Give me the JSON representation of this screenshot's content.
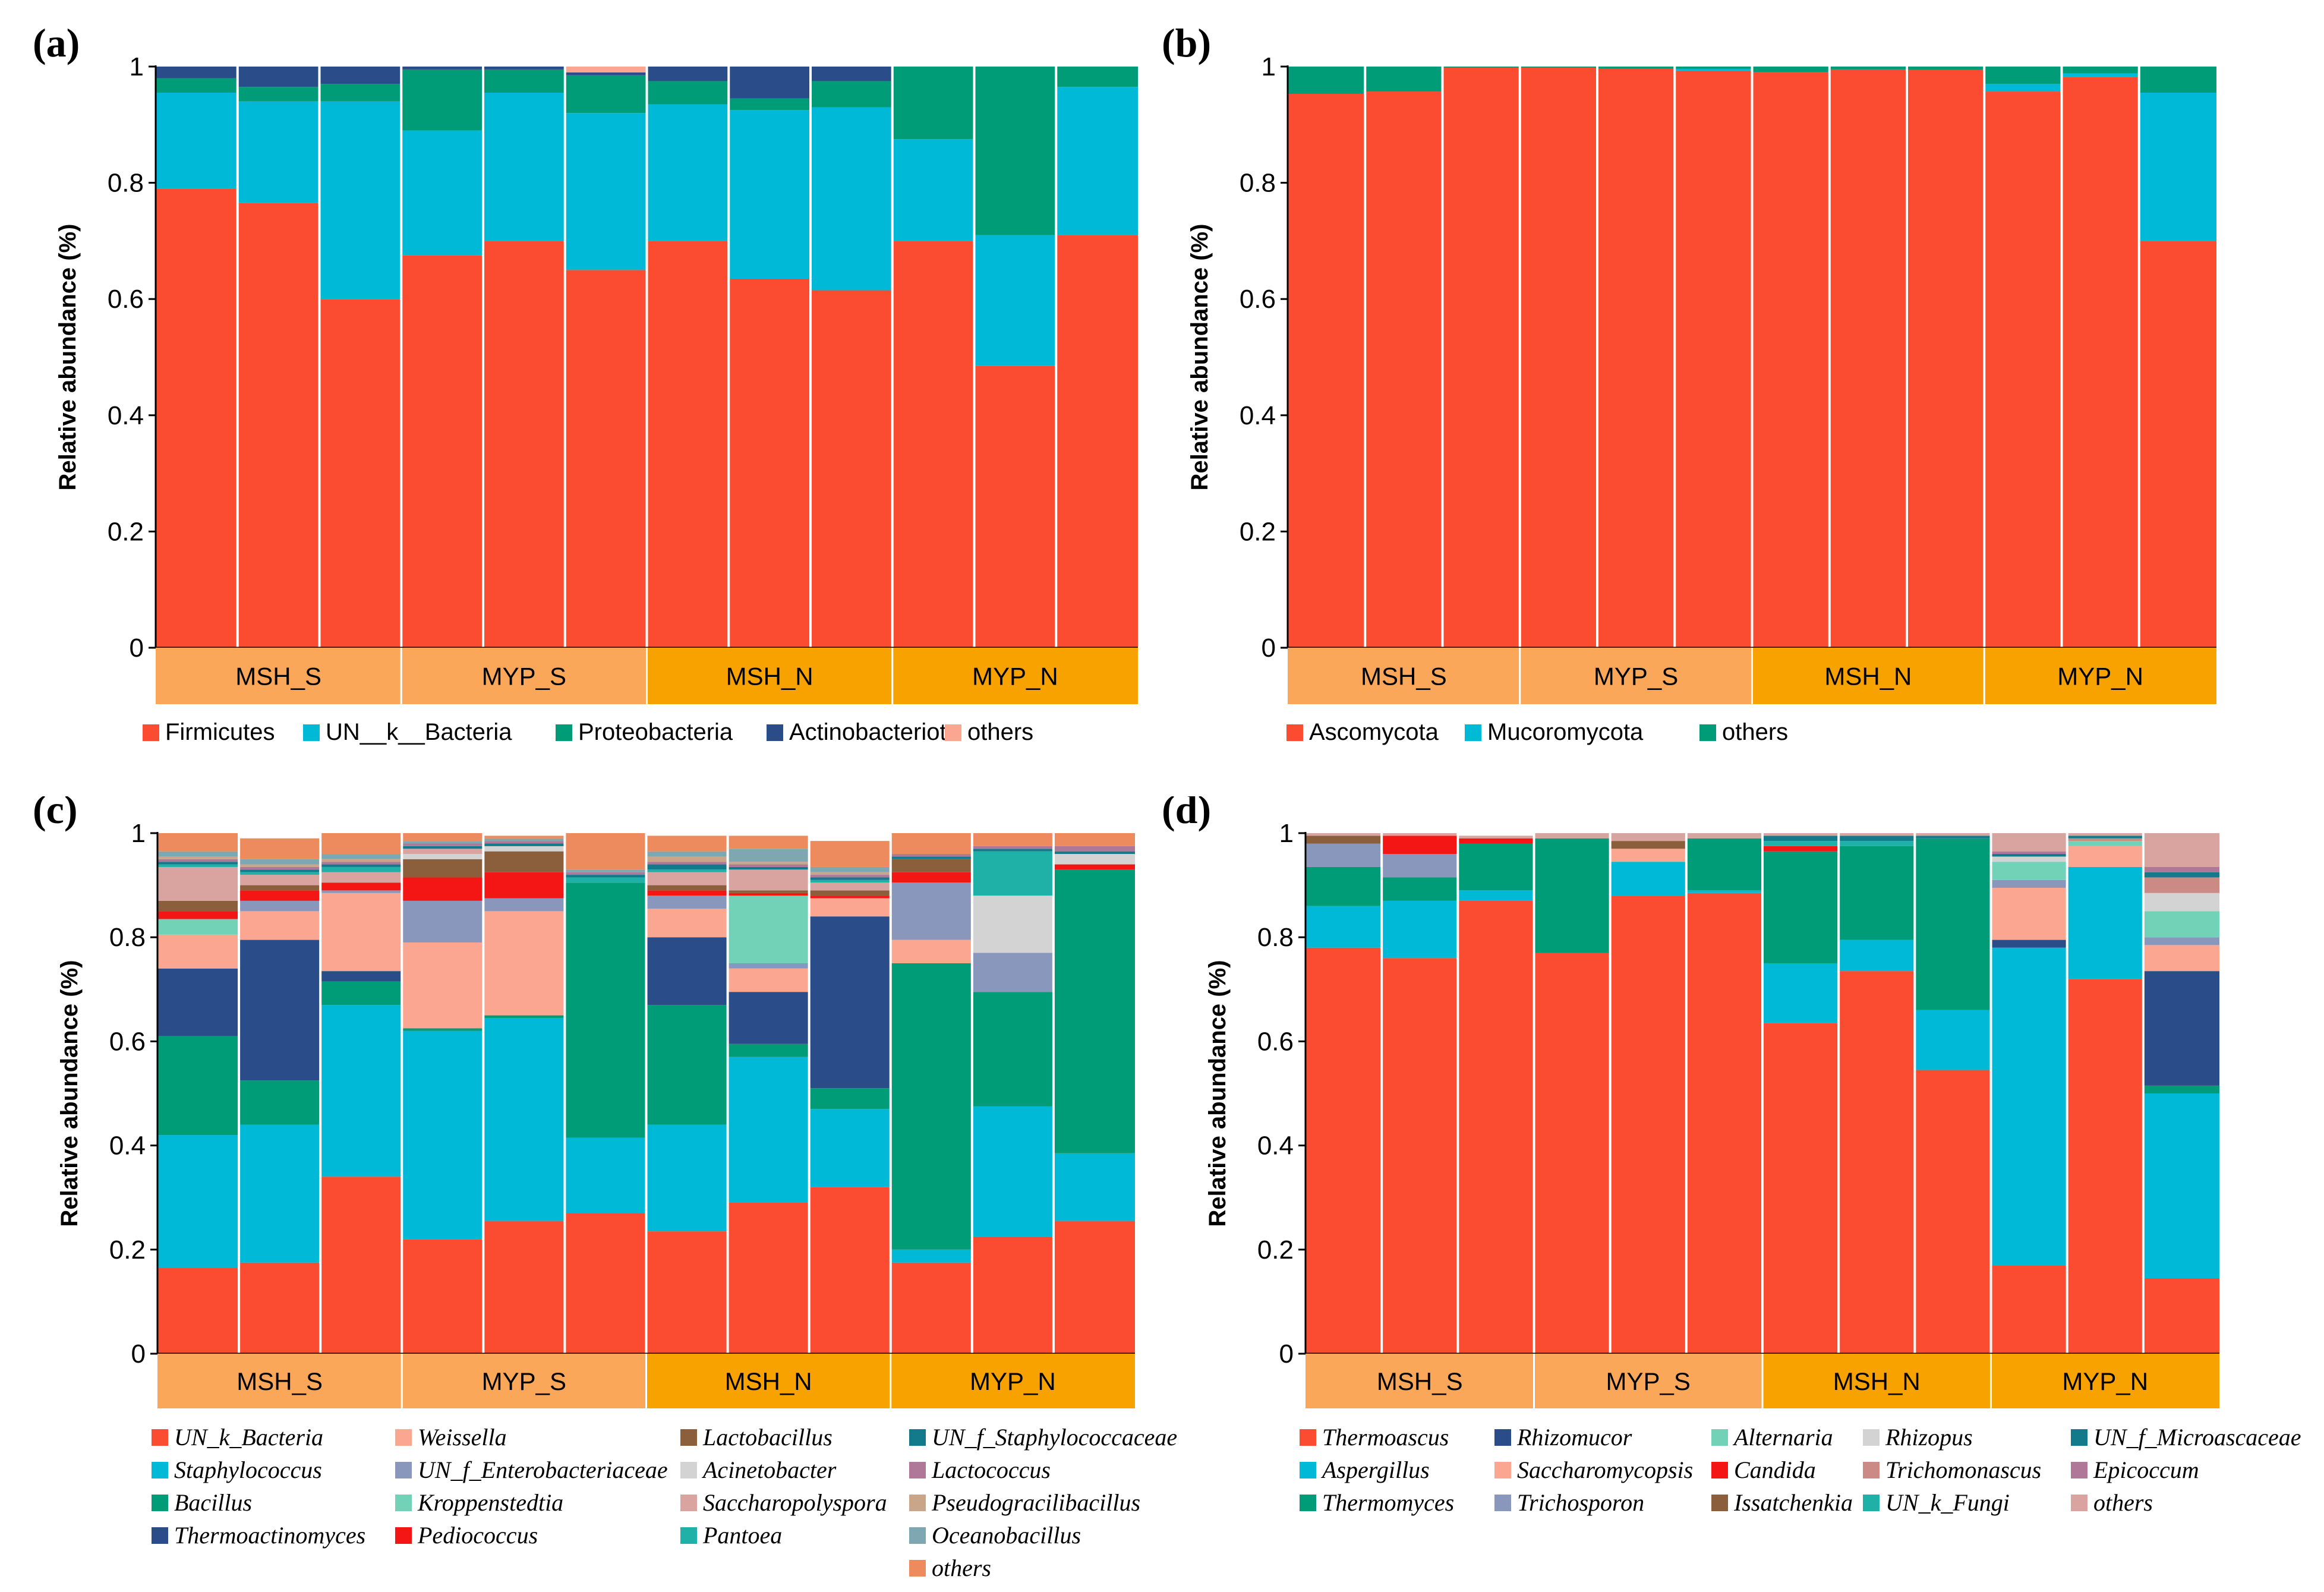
{
  "groups": [
    "MSH_S",
    "MYP_S",
    "MSH_N",
    "MYP_N"
  ],
  "group_colors": [
    "#FBA75A",
    "#FBA75A",
    "#F8A200",
    "#F8A200"
  ],
  "chart_data": [
    {
      "panel": "(a)",
      "type": "stacked-bar",
      "ylabel": "Relative abundance (%)",
      "ylim": [
        0,
        1
      ],
      "yticks": [
        "0",
        "0.2",
        "0.4",
        "0.6",
        "0.8",
        "1"
      ],
      "groups": [
        "MSH_S",
        "MYP_S",
        "MSH_N",
        "MYP_N"
      ],
      "bars_per_group": 3,
      "legend_italic": false,
      "series": [
        {
          "name": "Firmicutes",
          "color": "#FB4B31",
          "values": [
            0.79,
            0.765,
            0.6,
            0.675,
            0.7,
            0.65,
            0.7,
            0.635,
            0.615,
            0.7,
            0.485,
            0.71
          ]
        },
        {
          "name": "UN__k__Bacteria",
          "color": "#00B9D6",
          "values": [
            0.165,
            0.175,
            0.34,
            0.215,
            0.255,
            0.27,
            0.235,
            0.29,
            0.315,
            0.175,
            0.225,
            0.255
          ]
        },
        {
          "name": "Proteobacteria",
          "color": "#009B77",
          "values": [
            0.025,
            0.025,
            0.03,
            0.105,
            0.04,
            0.065,
            0.04,
            0.02,
            0.045,
            0.125,
            0.29,
            0.035
          ]
        },
        {
          "name": "Actinobacteriota",
          "color": "#2A4C89",
          "values": [
            0.02,
            0.035,
            0.03,
            0.005,
            0.005,
            0.005,
            0.025,
            0.055,
            0.025,
            0.0,
            0.0,
            0.0
          ]
        },
        {
          "name": "others",
          "color": "#FBA690",
          "values": [
            0.0,
            0.0,
            0.0,
            0.0,
            0.0,
            0.01,
            0.0,
            0.0,
            0.0,
            0.0,
            0.0,
            0.0
          ]
        }
      ]
    },
    {
      "panel": "(b)",
      "type": "stacked-bar",
      "ylabel": "Relative abundance (%)",
      "ylim": [
        0,
        1
      ],
      "yticks": [
        "0",
        "0.2",
        "0.4",
        "0.6",
        "0.8",
        "1"
      ],
      "groups": [
        "MSH_S",
        "MYP_S",
        "MSH_N",
        "MYP_N"
      ],
      "bars_per_group": 3,
      "legend_italic": false,
      "series": [
        {
          "name": "Ascomycota",
          "color": "#FB4B31",
          "values": [
            0.953,
            0.957,
            0.998,
            0.998,
            0.996,
            0.993,
            0.99,
            0.995,
            0.994,
            0.957,
            0.982,
            0.7
          ]
        },
        {
          "name": "Mucoromycota",
          "color": "#00B9D6",
          "values": [
            0.0,
            0.0,
            0.0,
            0.0,
            0.0,
            0.003,
            0.0,
            0.0,
            0.0,
            0.013,
            0.006,
            0.255
          ]
        },
        {
          "name": "others",
          "color": "#009B77",
          "values": [
            0.047,
            0.043,
            0.002,
            0.002,
            0.004,
            0.004,
            0.01,
            0.005,
            0.006,
            0.03,
            0.012,
            0.045
          ]
        }
      ]
    },
    {
      "panel": "(c)",
      "type": "stacked-bar",
      "ylabel": "Relative abundance (%)",
      "ylim": [
        0,
        1
      ],
      "yticks": [
        "0",
        "0.2",
        "0.4",
        "0.6",
        "0.8",
        "1"
      ],
      "groups": [
        "MSH_S",
        "MYP_S",
        "MSH_N",
        "MYP_N"
      ],
      "bars_per_group": 3,
      "legend_italic": true,
      "series": [
        {
          "name": "UN_k_Bacteria",
          "color": "#FB4B31",
          "values": [
            0.165,
            0.175,
            0.34,
            0.22,
            0.255,
            0.27,
            0.235,
            0.29,
            0.32,
            0.175,
            0.225,
            0.255
          ]
        },
        {
          "name": "Staphylococcus",
          "color": "#00B9D6",
          "values": [
            0.255,
            0.265,
            0.33,
            0.4,
            0.39,
            0.145,
            0.205,
            0.28,
            0.15,
            0.025,
            0.25,
            0.13
          ]
        },
        {
          "name": "Bacillus",
          "color": "#009B77",
          "values": [
            0.19,
            0.085,
            0.045,
            0.005,
            0.005,
            0.49,
            0.23,
            0.025,
            0.04,
            0.55,
            0.22,
            0.545
          ]
        },
        {
          "name": "Thermoactinomyces",
          "color": "#2A4C89",
          "values": [
            0.13,
            0.27,
            0.02,
            0.0,
            0.0,
            0.0,
            0.13,
            0.1,
            0.33,
            0.0,
            0.0,
            0.0
          ]
        },
        {
          "name": "Weissella",
          "color": "#FBA690",
          "values": [
            0.065,
            0.055,
            0.15,
            0.165,
            0.2,
            0.0,
            0.055,
            0.045,
            0.035,
            0.045,
            0.0,
            0.0
          ]
        },
        {
          "name": "UN_f_Enterobacteriaceae",
          "color": "#8A97BD",
          "values": [
            0.0,
            0.02,
            0.005,
            0.08,
            0.025,
            0.0,
            0.025,
            0.01,
            0.0,
            0.11,
            0.075,
            0.0
          ]
        },
        {
          "name": "Kroppenstedtia",
          "color": "#72D2B8",
          "values": [
            0.03,
            0.0,
            0.0,
            0.0,
            0.0,
            0.0,
            0.0,
            0.13,
            0.0,
            0.0,
            0.0,
            0.0
          ]
        },
        {
          "name": "Pediococcus",
          "color": "#F41515",
          "values": [
            0.015,
            0.02,
            0.015,
            0.045,
            0.05,
            0.0,
            0.01,
            0.005,
            0.005,
            0.02,
            0.0,
            0.01
          ]
        },
        {
          "name": "Lactobacillus",
          "color": "#8B5E3C",
          "values": [
            0.02,
            0.01,
            0.0,
            0.035,
            0.04,
            0.0,
            0.01,
            0.005,
            0.01,
            0.025,
            0.0,
            0.0
          ]
        },
        {
          "name": "Acinetobacter",
          "color": "#D3D3D3",
          "values": [
            0.0,
            0.0,
            0.0,
            0.01,
            0.01,
            0.0,
            0.0,
            0.0,
            0.0,
            0.0,
            0.11,
            0.02
          ]
        },
        {
          "name": "Saccharopolyspora",
          "color": "#D9A3A0",
          "values": [
            0.065,
            0.02,
            0.02,
            0.01,
            0.0,
            0.0,
            0.025,
            0.04,
            0.015,
            0.0,
            0.0,
            0.0
          ]
        },
        {
          "name": "Pantoea",
          "color": "#1FB0A8",
          "values": [
            0.005,
            0.005,
            0.01,
            0.0,
            0.0,
            0.01,
            0.005,
            0.0,
            0.005,
            0.0,
            0.085,
            0.0
          ]
        },
        {
          "name": "UN_f_Staphylococcaceae",
          "color": "#137A8C",
          "values": [
            0.005,
            0.005,
            0.005,
            0.005,
            0.005,
            0.005,
            0.01,
            0.005,
            0.005,
            0.005,
            0.005,
            0.005
          ]
        },
        {
          "name": "Lactococcus",
          "color": "#B07898",
          "values": [
            0.005,
            0.005,
            0.005,
            0.005,
            0.005,
            0.005,
            0.005,
            0.005,
            0.005,
            0.005,
            0.005,
            0.01
          ]
        },
        {
          "name": "Pseudogracilibacillus",
          "color": "#C9A58A",
          "values": [
            0.005,
            0.005,
            0.005,
            0.0,
            0.0,
            0.0,
            0.01,
            0.005,
            0.005,
            0.0,
            0.0,
            0.0
          ]
        },
        {
          "name": "Oceanobacillus",
          "color": "#7FA7B2",
          "values": [
            0.01,
            0.01,
            0.01,
            0.005,
            0.005,
            0.005,
            0.01,
            0.025,
            0.01,
            0.0,
            0.0,
            0.0
          ]
        },
        {
          "name": "others",
          "color": "#EE8B5E",
          "values": [
            0.035,
            0.04,
            0.04,
            0.015,
            0.005,
            0.07,
            0.03,
            0.025,
            0.05,
            0.04,
            0.025,
            0.025
          ]
        }
      ]
    },
    {
      "panel": "(d)",
      "type": "stacked-bar",
      "ylabel": "Relative abundance (%)",
      "ylim": [
        0,
        1
      ],
      "yticks": [
        "0",
        "0.2",
        "0.4",
        "0.6",
        "0.8",
        "1"
      ],
      "groups": [
        "MSH_S",
        "MYP_S",
        "MSH_N",
        "MYP_N"
      ],
      "bars_per_group": 3,
      "legend_italic": true,
      "series": [
        {
          "name": "Thermoascus",
          "color": "#FB4B31",
          "values": [
            0.78,
            0.76,
            0.87,
            0.77,
            0.88,
            0.885,
            0.635,
            0.735,
            0.545,
            0.17,
            0.72,
            0.145
          ]
        },
        {
          "name": "Aspergillus",
          "color": "#00B9D6",
          "values": [
            0.08,
            0.11,
            0.02,
            0.0,
            0.065,
            0.005,
            0.115,
            0.06,
            0.115,
            0.61,
            0.215,
            0.355
          ]
        },
        {
          "name": "Thermomyces",
          "color": "#009B77",
          "values": [
            0.075,
            0.045,
            0.09,
            0.22,
            0.0,
            0.1,
            0.215,
            0.18,
            0.33,
            0.0,
            0.0,
            0.015
          ]
        },
        {
          "name": "Rhizomucor",
          "color": "#2A4C89",
          "values": [
            0.0,
            0.0,
            0.0,
            0.0,
            0.0,
            0.0,
            0.0,
            0.0,
            0.0,
            0.015,
            0.0,
            0.22
          ]
        },
        {
          "name": "Saccharomycopsis",
          "color": "#FBA690",
          "values": [
            0.0,
            0.0,
            0.0,
            0.0,
            0.025,
            0.0,
            0.0,
            0.0,
            0.0,
            0.1,
            0.04,
            0.05
          ]
        },
        {
          "name": "Trichosporon",
          "color": "#8A97BD",
          "values": [
            0.045,
            0.045,
            0.0,
            0.0,
            0.0,
            0.0,
            0.0,
            0.0,
            0.0,
            0.015,
            0.0,
            0.015
          ]
        },
        {
          "name": "Alternaria",
          "color": "#72D2B8",
          "values": [
            0.0,
            0.0,
            0.0,
            0.0,
            0.0,
            0.0,
            0.0,
            0.0,
            0.0,
            0.035,
            0.01,
            0.05
          ]
        },
        {
          "name": "Candida",
          "color": "#F41515",
          "values": [
            0.0,
            0.035,
            0.01,
            0.0,
            0.0,
            0.0,
            0.01,
            0.0,
            0.0,
            0.0,
            0.0,
            0.0
          ]
        },
        {
          "name": "Issatchenkia",
          "color": "#8B5E3C",
          "values": [
            0.015,
            0.0,
            0.0,
            0.0,
            0.015,
            0.0,
            0.0,
            0.0,
            0.0,
            0.0,
            0.0,
            0.0
          ]
        },
        {
          "name": "Rhizopus",
          "color": "#D3D3D3",
          "values": [
            0.0,
            0.0,
            0.0,
            0.0,
            0.0,
            0.0,
            0.0,
            0.0,
            0.0,
            0.01,
            0.0,
            0.035
          ]
        },
        {
          "name": "Trichomonascus",
          "color": "#CC8A86",
          "values": [
            0.0,
            0.0,
            0.0,
            0.0,
            0.0,
            0.0,
            0.0,
            0.0,
            0.0,
            0.0,
            0.005,
            0.03
          ]
        },
        {
          "name": "UN_k_Fungi",
          "color": "#1FB0A8",
          "values": [
            0.0,
            0.0,
            0.0,
            0.0,
            0.0,
            0.0,
            0.01,
            0.01,
            0.0,
            0.0,
            0.0,
            0.0
          ]
        },
        {
          "name": "UN_f_Microascaceae",
          "color": "#137A8C",
          "values": [
            0.0,
            0.0,
            0.0,
            0.0,
            0.0,
            0.0,
            0.01,
            0.01,
            0.005,
            0.005,
            0.005,
            0.01
          ]
        },
        {
          "name": "Epicoccum",
          "color": "#B07898",
          "values": [
            0.0,
            0.0,
            0.0,
            0.0,
            0.0,
            0.0,
            0.0,
            0.0,
            0.0,
            0.005,
            0.0,
            0.01
          ]
        },
        {
          "name": "others",
          "color": "#D9A3A0",
          "values": [
            0.005,
            0.005,
            0.005,
            0.01,
            0.015,
            0.01,
            0.005,
            0.005,
            0.005,
            0.035,
            0.005,
            0.065
          ]
        }
      ]
    }
  ]
}
